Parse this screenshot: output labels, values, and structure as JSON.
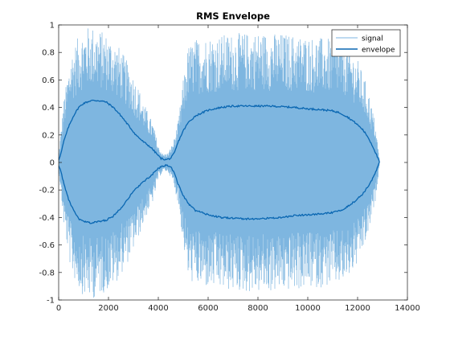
{
  "chart_data": {
    "type": "line",
    "title": "RMS Envelope",
    "xlabel": "",
    "ylabel": "",
    "xlim": [
      0,
      14000
    ],
    "ylim": [
      -1,
      1
    ],
    "xticks": [
      0,
      2000,
      4000,
      6000,
      8000,
      10000,
      12000,
      14000
    ],
    "yticks": [
      -1,
      -0.8,
      -0.6,
      -0.4,
      -0.2,
      0,
      0.2,
      0.4,
      0.6,
      0.8,
      1
    ],
    "xtick_labels": [
      "0",
      "2000",
      "4000",
      "6000",
      "8000",
      "10000",
      "12000",
      "14000"
    ],
    "ytick_labels": [
      "-1",
      "-0.8",
      "-0.6",
      "-0.4",
      "-0.2",
      "0",
      "0.2",
      "0.4",
      "0.6",
      "0.8",
      "1"
    ],
    "grid": false,
    "legend_position": "top-right",
    "series": [
      {
        "name": "signal",
        "color": "#7eb6e0",
        "style": "dense-oscillation",
        "x": [
          0,
          200,
          500,
          800,
          1000,
          1300,
          1600,
          2000,
          2400,
          2800,
          3200,
          3500,
          3800,
          4000,
          4200,
          4400,
          4600,
          4800,
          5000,
          5200,
          5500,
          6000,
          7000,
          8000,
          9000,
          10000,
          11000,
          11500,
          12000,
          12400,
          12700,
          12880
        ],
        "amplitude": [
          0.05,
          0.45,
          0.8,
          0.92,
          0.97,
          1.0,
          0.97,
          0.93,
          0.85,
          0.72,
          0.55,
          0.4,
          0.28,
          0.12,
          0.06,
          0.07,
          0.15,
          0.3,
          0.6,
          0.85,
          0.9,
          0.92,
          0.94,
          0.95,
          0.94,
          0.92,
          0.9,
          0.88,
          0.75,
          0.55,
          0.3,
          0.02
        ]
      },
      {
        "name": "envelope",
        "color": "#0a67b2",
        "x": [
          0,
          100,
          200,
          400,
          600,
          800,
          1000,
          1300,
          1600,
          1900,
          2200,
          2500,
          2800,
          3100,
          3400,
          3700,
          3900,
          4100,
          4300,
          4500,
          4650,
          4800,
          5000,
          5200,
          5500,
          6000,
          6500,
          7000,
          7500,
          8000,
          8500,
          9000,
          9500,
          10000,
          10500,
          11000,
          11300,
          11600,
          11900,
          12200,
          12400,
          12600,
          12750,
          12880
        ],
        "y_upper": [
          0.02,
          0.07,
          0.15,
          0.26,
          0.34,
          0.4,
          0.43,
          0.45,
          0.45,
          0.44,
          0.4,
          0.34,
          0.27,
          0.2,
          0.15,
          0.11,
          0.07,
          0.03,
          0.02,
          0.03,
          0.07,
          0.15,
          0.23,
          0.29,
          0.34,
          0.38,
          0.4,
          0.41,
          0.41,
          0.41,
          0.41,
          0.405,
          0.4,
          0.39,
          0.385,
          0.375,
          0.36,
          0.33,
          0.29,
          0.24,
          0.19,
          0.12,
          0.06,
          0.0
        ],
        "y_lower": [
          -0.02,
          -0.07,
          -0.15,
          -0.27,
          -0.35,
          -0.41,
          -0.43,
          -0.44,
          -0.43,
          -0.42,
          -0.39,
          -0.33,
          -0.26,
          -0.19,
          -0.14,
          -0.1,
          -0.06,
          -0.03,
          -0.02,
          -0.03,
          -0.08,
          -0.16,
          -0.24,
          -0.3,
          -0.35,
          -0.38,
          -0.4,
          -0.405,
          -0.41,
          -0.41,
          -0.405,
          -0.4,
          -0.385,
          -0.38,
          -0.375,
          -0.365,
          -0.35,
          -0.32,
          -0.28,
          -0.23,
          -0.18,
          -0.12,
          -0.06,
          0.0
        ]
      }
    ]
  }
}
